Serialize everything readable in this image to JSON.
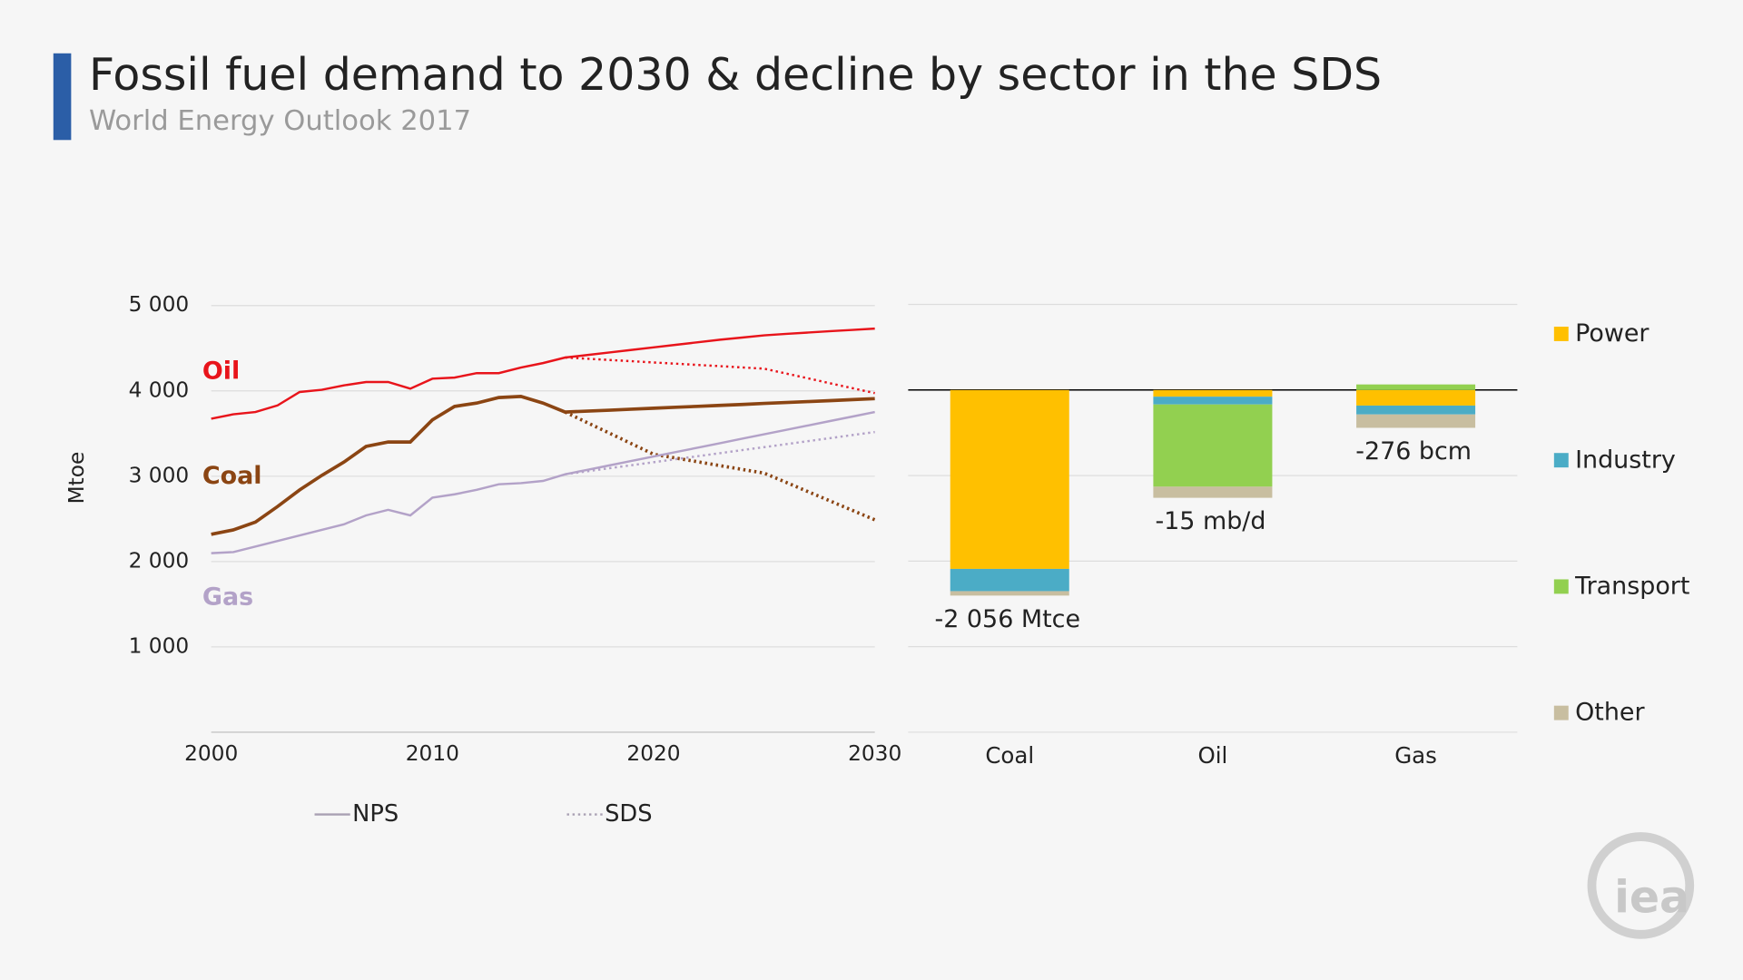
{
  "title": "Fossil fuel demand to 2030 & decline by sector in the SDS",
  "subtitle": "World Energy Outlook 2017",
  "logo": "iea",
  "chart_data": [
    {
      "type": "line",
      "y_label": "Mtoe",
      "x": [
        2000,
        2001,
        2002,
        2003,
        2004,
        2005,
        2006,
        2007,
        2008,
        2009,
        2010,
        2011,
        2012,
        2013,
        2014,
        2015,
        2016,
        2017,
        2018,
        2019,
        2020,
        2021,
        2022,
        2023,
        2024,
        2025,
        2026,
        2027,
        2028,
        2029,
        2030
      ],
      "xlim": [
        2000,
        2030
      ],
      "xticks": [
        2000,
        2010,
        2020,
        2030
      ],
      "ylim": [
        0,
        5000
      ],
      "yticks": [
        {
          "value": 1000,
          "label": "1 000"
        },
        {
          "value": 2000,
          "label": "2 000"
        },
        {
          "value": 3000,
          "label": "3 000"
        },
        {
          "value": 4000,
          "label": "4 000"
        },
        {
          "value": 5000,
          "label": "5 000"
        }
      ],
      "grid": true,
      "legend": [
        {
          "name": "NPS",
          "style": "solid",
          "color": "#a9a0b3"
        },
        {
          "name": "SDS",
          "style": "dotted",
          "color": "#a9a0b3"
        }
      ],
      "series": [
        {
          "name": "Oil",
          "color": "#e8141b",
          "width": 2,
          "values": [
            3674,
            3726,
            3752,
            3830,
            3987,
            4013,
            4065,
            4104,
            4104,
            4026,
            4143,
            4156,
            4208,
            4208,
            4274,
            4326,
            4391,
            4420,
            4450,
            4480,
            4510,
            4540,
            4570,
            4600,
            4625,
            4651,
            4668,
            4684,
            4700,
            4715,
            4730
          ],
          "sds_values": [
            null,
            null,
            null,
            null,
            null,
            null,
            null,
            null,
            null,
            null,
            null,
            null,
            null,
            null,
            null,
            null,
            4391,
            4377,
            4362,
            4348,
            4333,
            4319,
            4304,
            4290,
            4275,
            4260,
            4203,
            4146,
            4088,
            4031,
            3974
          ]
        },
        {
          "name": "Coal",
          "color": "#8b4513",
          "width": 3,
          "values": [
            2319,
            2371,
            2463,
            2645,
            2840,
            3010,
            3166,
            3349,
            3401,
            3401,
            3661,
            3818,
            3857,
            3922,
            3935,
            3857,
            3752,
            3763,
            3774,
            3786,
            3797,
            3808,
            3819,
            3830,
            3841,
            3853,
            3864,
            3875,
            3886,
            3898,
            3909
          ],
          "sds_values": [
            null,
            null,
            null,
            null,
            null,
            null,
            null,
            null,
            null,
            null,
            null,
            null,
            null,
            null,
            null,
            null,
            3752,
            3628,
            3505,
            3381,
            3257,
            3213,
            3169,
            3124,
            3080,
            3036,
            2927,
            2817,
            2708,
            2598,
            2489
          ]
        },
        {
          "name": "Gas",
          "color": "#b3a2c8",
          "width": 2,
          "values": [
            2098,
            2111,
            2176,
            2241,
            2306,
            2371,
            2436,
            2541,
            2606,
            2541,
            2749,
            2788,
            2840,
            2906,
            2919,
            2945,
            3023,
            3075,
            3127,
            3179,
            3231,
            3283,
            3335,
            3387,
            3440,
            3492,
            3544,
            3596,
            3648,
            3700,
            3752
          ],
          "sds_values": [
            null,
            null,
            null,
            null,
            null,
            null,
            null,
            null,
            null,
            null,
            null,
            null,
            null,
            null,
            null,
            null,
            3023,
            3058,
            3094,
            3129,
            3164,
            3200,
            3235,
            3270,
            3306,
            3341,
            3376,
            3412,
            3447,
            3483,
            3518
          ]
        }
      ]
    },
    {
      "type": "stacked_bar",
      "categories": [
        "Coal",
        "Oil",
        "Gas"
      ],
      "ylim": [
        -4000,
        1000
      ],
      "yticks": [
        -4000,
        -3000,
        -2000,
        -1000,
        0,
        1000
      ],
      "grid": true,
      "annotations": [
        "-2 056 Mtce",
        "-15 mb/d",
        "-276 bcm"
      ],
      "series": [
        {
          "name": "Power",
          "color": "#ffc000",
          "values": [
            -2091,
            -78,
            -182
          ]
        },
        {
          "name": "Industry",
          "color": "#4bacc6",
          "values": [
            -260,
            -91,
            -104
          ]
        },
        {
          "name": "Transport",
          "color": "#92d050",
          "values": [
            0,
            -961,
            65
          ]
        },
        {
          "name": "Other",
          "color": "#c8bea0",
          "values": [
            -52,
            -130,
            -156
          ]
        }
      ]
    }
  ]
}
